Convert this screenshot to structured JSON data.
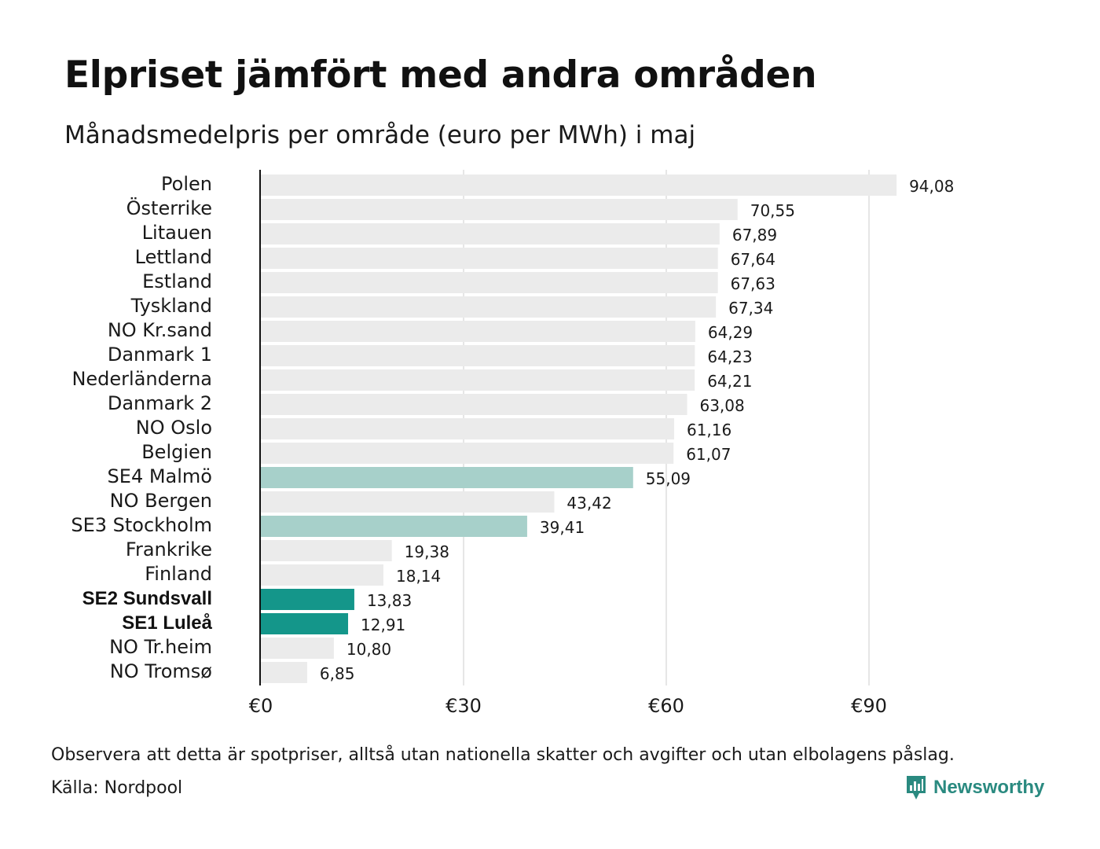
{
  "header": {
    "title": "Elpriset jämfört med andra områden",
    "subtitle": "Månadsmedelpris per område (euro per MWh) i maj"
  },
  "chart_data": {
    "type": "bar",
    "orientation": "horizontal",
    "title": "Elpriset jämfört med andra områden",
    "subtitle": "Månadsmedelpris per område (euro per MWh) i maj",
    "categories": [
      "Polen",
      "Österrike",
      "Litauen",
      "Lettland",
      "Estland",
      "Tyskland",
      "NO Kr.sand",
      "Danmark  1",
      "Nederländerna",
      "Danmark  2",
      "NO Oslo",
      "Belgien",
      "SE4  Malmö",
      "NO Bergen",
      "SE3  Stockholm",
      "Frankrike",
      "Finland",
      "SE2 Sundsvall",
      "SE1 Luleå",
      "NO Tr.heim",
      "NO Tromsø"
    ],
    "values": [
      94.08,
      70.55,
      67.89,
      67.64,
      67.63,
      67.34,
      64.29,
      64.23,
      64.21,
      63.08,
      61.16,
      61.07,
      55.09,
      43.42,
      39.41,
      19.38,
      18.14,
      13.83,
      12.91,
      10.8,
      6.85
    ],
    "value_labels": [
      "94,08",
      "70,55",
      "67,89",
      "67,64",
      "67,63",
      "67,34",
      "64,29",
      "64,23",
      "64,21",
      "63,08",
      "61,16",
      "61,07",
      "55,09",
      "43,42",
      "39,41",
      "19,38",
      "18,14",
      "13,83",
      "12,91",
      "10,80",
      "6,85"
    ],
    "highlight": [
      "none",
      "none",
      "none",
      "none",
      "none",
      "none",
      "none",
      "none",
      "none",
      "none",
      "none",
      "none",
      "light",
      "none",
      "light",
      "none",
      "none",
      "strong",
      "strong",
      "none",
      "none"
    ],
    "xlim": [
      0,
      105
    ],
    "x_ticks": [
      0,
      30,
      60,
      90
    ],
    "x_tick_labels": [
      "€0",
      "€30",
      "€60",
      "€90"
    ],
    "grid": true,
    "colors": {
      "default": "#ebebeb",
      "light": "#a7d0ca",
      "strong": "#14968a",
      "axis": "#111111",
      "grid": "#cccccc"
    }
  },
  "footer": {
    "note": "Observera att detta är spotpriser, alltså utan nationella skatter och avgifter och utan elbolagens påslag.",
    "source": "Källa: Nordpool",
    "brand": "Newsworthy",
    "brand_color": "#2a8a80"
  }
}
